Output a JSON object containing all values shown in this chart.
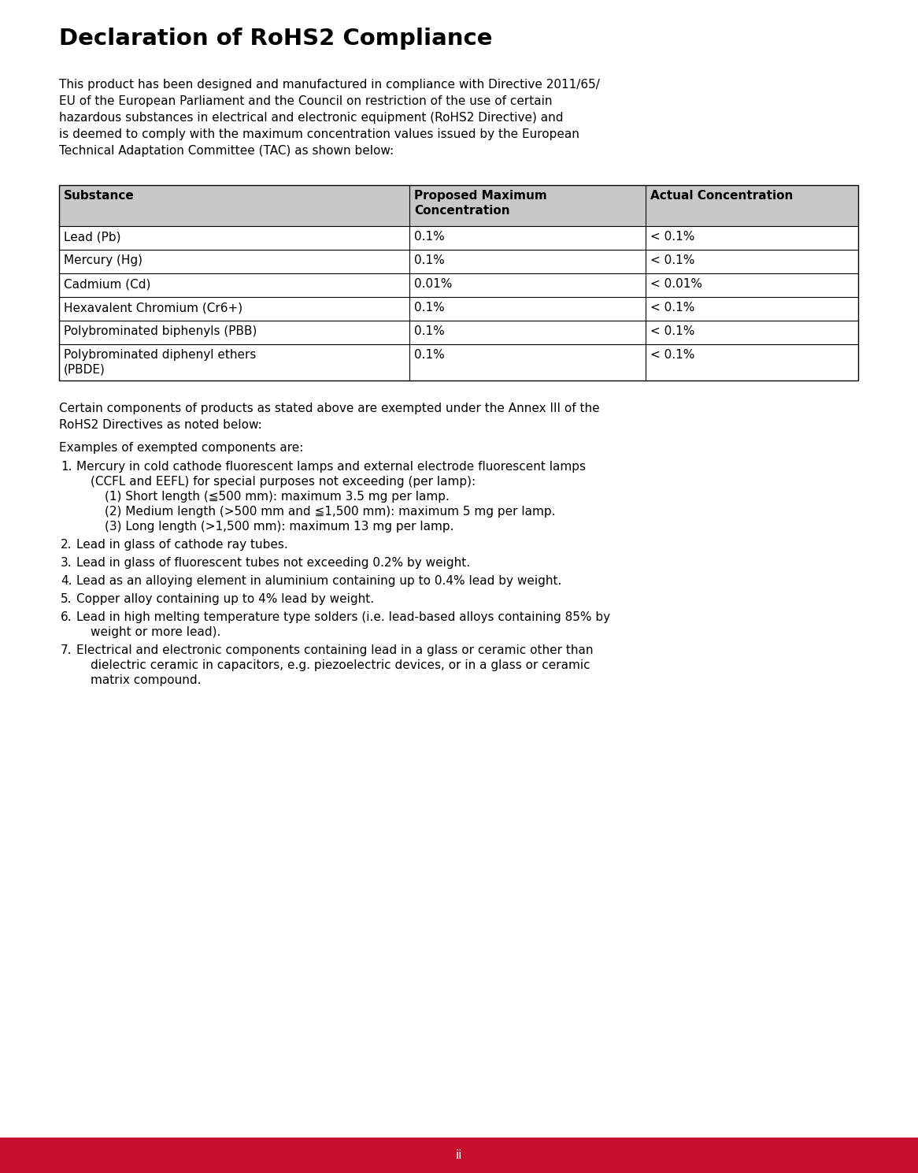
{
  "title": "Declaration of RoHS2 Compliance",
  "intro_text": "This product has been designed and manufactured in compliance with Directive 2011/65/\nEU of the European Parliament and the Council on restriction of the use of certain\nhazardous substances in electrical and electronic equipment (RoHS2 Directive) and\nis deemed to comply with the maximum concentration values issued by the European\nTechnical Adaptation Committee (TAC) as shown below:",
  "table_headers": [
    "Substance",
    "Proposed Maximum\nConcentration",
    "Actual Concentration"
  ],
  "table_rows": [
    [
      "Lead (Pb)",
      "0.1%",
      "< 0.1%"
    ],
    [
      "Mercury (Hg)",
      "0.1%",
      "< 0.1%"
    ],
    [
      "Cadmium (Cd)",
      "0.01%",
      "< 0.01%"
    ],
    [
      "Hexavalent Chromium (Cr6+)",
      "0.1%",
      "< 0.1%"
    ],
    [
      "Polybrominated biphenyls (PBB)",
      "0.1%",
      "< 0.1%"
    ],
    [
      "Polybrominated diphenyl ethers\n(PBDE)",
      "0.1%",
      "< 0.1%"
    ]
  ],
  "header_bg": "#c8c8c8",
  "table_border": "#000000",
  "exemption_text": "Certain components of products as stated above are exempted under the Annex III of the\nRoHS2 Directives as noted below:",
  "examples_text": "Examples of exempted components are:",
  "numbered_items": [
    [
      "Mercury in cold cathode fluorescent lamps and external electrode fluorescent lamps",
      "(CCFL and EEFL) for special purposes not exceeding (per lamp):",
      "(1) Short length (≦500 mm): maximum 3.5 mg per lamp.",
      "(2) Medium length (>500 mm and ≦1,500 mm): maximum 5 mg per lamp.",
      "(3) Long length (>1,500 mm): maximum 13 mg per lamp."
    ],
    [
      "Lead in glass of cathode ray tubes."
    ],
    [
      "Lead in glass of fluorescent tubes not exceeding 0.2% by weight."
    ],
    [
      "Lead as an alloying element in aluminium containing up to 0.4% lead by weight."
    ],
    [
      "Copper alloy containing up to 4% lead by weight."
    ],
    [
      "Lead in high melting temperature type solders (i.e. lead-based alloys containing 85% by",
      "weight or more lead)."
    ],
    [
      "Electrical and electronic components containing lead in a glass or ceramic other than",
      "dielectric ceramic in capacitors, e.g. piezoelectric devices, or in a glass or ceramic",
      "matrix compound."
    ]
  ],
  "footer_text": "ii",
  "footer_bg": "#c8102e",
  "footer_text_color": "#ffffff",
  "bg_color": "#ffffff",
  "text_color": "#000000"
}
